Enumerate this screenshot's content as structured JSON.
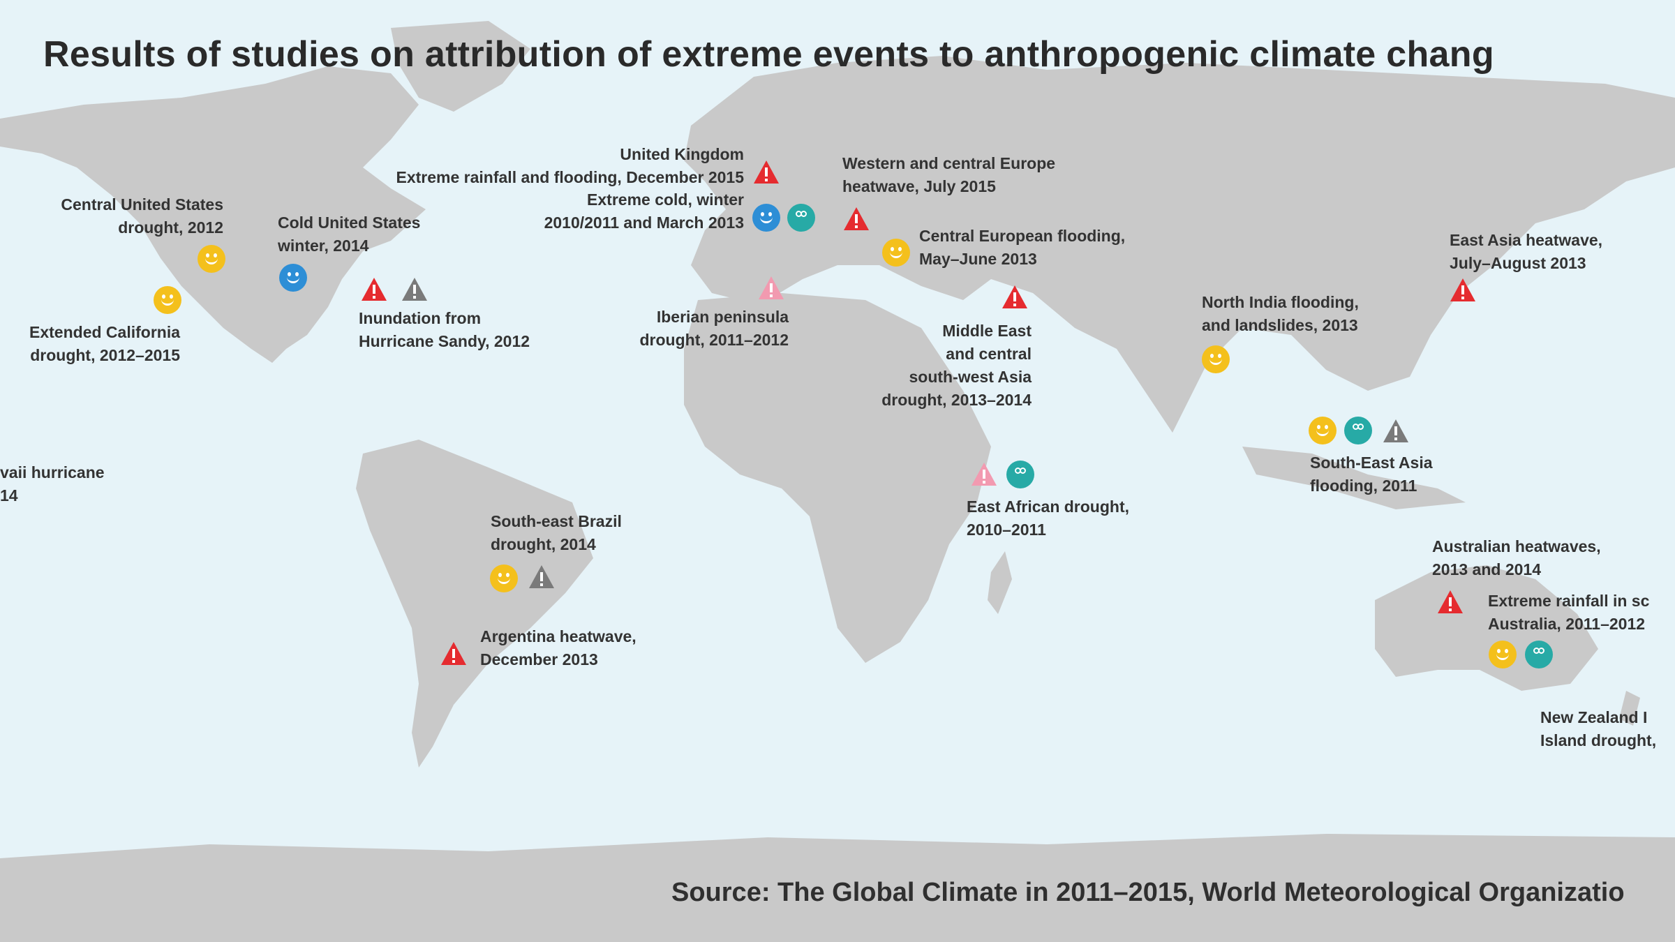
{
  "title": "Results of studies on attribution of extreme events to anthropogenic climate chang",
  "source": "Source: The Global Climate in 2011–2015, World Meteorological Organizatio",
  "colors": {
    "ocean": "#e6f3f8",
    "land": "#c9c9c9",
    "red": "#e52b2f",
    "pink": "#f29ab0",
    "grey": "#7a7a7a",
    "yellow": "#f4c01c",
    "blue": "#2d8ed6",
    "teal": "#27aaa6"
  },
  "events": [
    {
      "id": "uk",
      "lines": [
        "United Kingdom",
        "Extreme rainfall and flooding, December 2015"
      ],
      "icons": [
        "red-warning-icon"
      ]
    },
    {
      "id": "uk-cold",
      "lines": [
        "Extreme cold, winter",
        "2010/2011 and March 2013"
      ],
      "icons": [
        "blue-face-icon",
        "teal-face-icon"
      ]
    },
    {
      "id": "weurope",
      "lines": [
        "Western and central Europe",
        "heatwave, July 2015"
      ],
      "icons": [
        "red-warning-icon"
      ]
    },
    {
      "id": "ceurope",
      "lines": [
        "Central European flooding,",
        "May–June 2013"
      ],
      "icons": [
        "yellow-face-icon"
      ]
    },
    {
      "id": "centralus",
      "lines": [
        "Central United States",
        "drought, 2012"
      ],
      "icons": [
        "yellow-face-icon"
      ]
    },
    {
      "id": "coldus",
      "lines": [
        "Cold United States",
        "winter, 2014"
      ],
      "icons": [
        "blue-face-icon"
      ]
    },
    {
      "id": "sandy",
      "lines": [
        "Inundation from",
        "Hurricane Sandy, 2012"
      ],
      "icons": [
        "red-warning-icon",
        "grey-warning-icon"
      ]
    },
    {
      "id": "california",
      "lines": [
        "Extended California",
        "drought, 2012–2015"
      ],
      "icons": [
        "yellow-face-icon"
      ]
    },
    {
      "id": "hawaii",
      "lines": [
        "vaii hurricane",
        "14"
      ],
      "icons": []
    },
    {
      "id": "iberia",
      "lines": [
        "Iberian peninsula",
        "drought, 2011–2012"
      ],
      "icons": [
        "pink-warning-icon"
      ]
    },
    {
      "id": "mideast",
      "lines": [
        "Middle East",
        "and central",
        "south-west Asia",
        "drought, 2013–2014"
      ],
      "icons": [
        "red-warning-icon"
      ]
    },
    {
      "id": "eafrica",
      "lines": [
        "East African drought,",
        "2010–2011"
      ],
      "icons": [
        "pink-warning-icon",
        "teal-face-icon"
      ]
    },
    {
      "id": "india",
      "lines": [
        "North India flooding,",
        "and landslides, 2013"
      ],
      "icons": [
        "yellow-face-icon"
      ]
    },
    {
      "id": "easia",
      "lines": [
        "East Asia heatwave,",
        "July–August 2013"
      ],
      "icons": [
        "red-warning-icon"
      ]
    },
    {
      "id": "seasia",
      "lines": [
        "South-East Asia",
        "flooding, 2011"
      ],
      "icons": [
        "yellow-face-icon",
        "teal-face-icon",
        "grey-warning-icon"
      ]
    },
    {
      "id": "brazil",
      "lines": [
        "South-east Brazil",
        "drought, 2014"
      ],
      "icons": [
        "yellow-face-icon",
        "grey-warning-icon"
      ]
    },
    {
      "id": "argentina",
      "lines": [
        "Argentina heatwave,",
        "December 2013"
      ],
      "icons": [
        "red-warning-icon"
      ]
    },
    {
      "id": "australia-heat",
      "lines": [
        "Australian heatwaves,",
        "2013 and 2014"
      ],
      "icons": [
        "red-warning-icon"
      ]
    },
    {
      "id": "australia-rain",
      "lines": [
        "Extreme rainfall in sc",
        "Australia, 2011–2012"
      ],
      "icons": [
        "yellow-face-icon",
        "teal-face-icon"
      ]
    },
    {
      "id": "nz",
      "lines": [
        "New Zealand I",
        "Island drought,"
      ],
      "icons": []
    }
  ]
}
